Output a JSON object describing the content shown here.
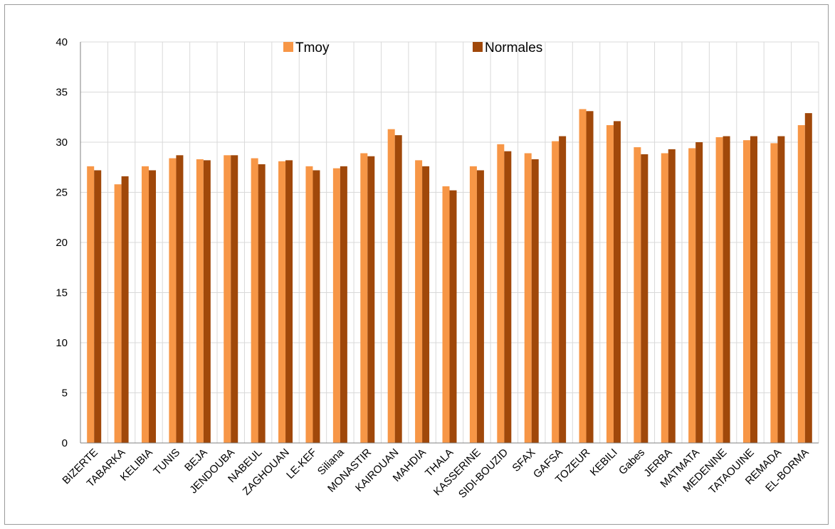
{
  "chart_data": {
    "type": "bar",
    "categories": [
      "BIZERTE",
      "TABARKA",
      "KELIBIA",
      "TUNIS",
      "BEJA",
      "JENDOUBA",
      "NABEUL",
      "ZAGHOUAN",
      "LE-KEF",
      "Siliana",
      "MONASTIR",
      "KAIROUAN",
      "MAHDIA",
      "THALA",
      "KASSERINE",
      "SIDI-BOUZID",
      "SFAX",
      "GAFSA",
      "TOZEUR",
      "KEBILI",
      "Gabes",
      "JERBA",
      "MATMATA",
      "MEDENINE",
      "TATAOUINE",
      "REMADA",
      "EL-BORMA"
    ],
    "series": [
      {
        "name": "Tmoy",
        "color": "#f79646",
        "values": [
          27.6,
          25.8,
          27.6,
          28.4,
          28.3,
          28.7,
          28.4,
          28.1,
          27.6,
          27.4,
          28.9,
          31.3,
          28.2,
          25.6,
          27.6,
          29.8,
          28.9,
          30.1,
          33.3,
          31.7,
          29.5,
          28.9,
          29.4,
          30.5,
          30.2,
          29.9,
          31.7
        ]
      },
      {
        "name": "Normales",
        "color": "#a0480a",
        "values": [
          27.2,
          26.6,
          27.2,
          28.7,
          28.2,
          28.7,
          27.8,
          28.2,
          27.2,
          27.6,
          28.6,
          30.7,
          27.6,
          25.2,
          27.2,
          29.1,
          28.3,
          30.6,
          33.1,
          32.1,
          28.8,
          29.3,
          30.0,
          30.6,
          30.6,
          30.6,
          32.9
        ]
      }
    ],
    "ylim": [
      0,
      40
    ],
    "yticks": [
      0,
      5,
      10,
      15,
      20,
      25,
      30,
      35,
      40
    ],
    "grid": true,
    "legend": "top-center"
  }
}
